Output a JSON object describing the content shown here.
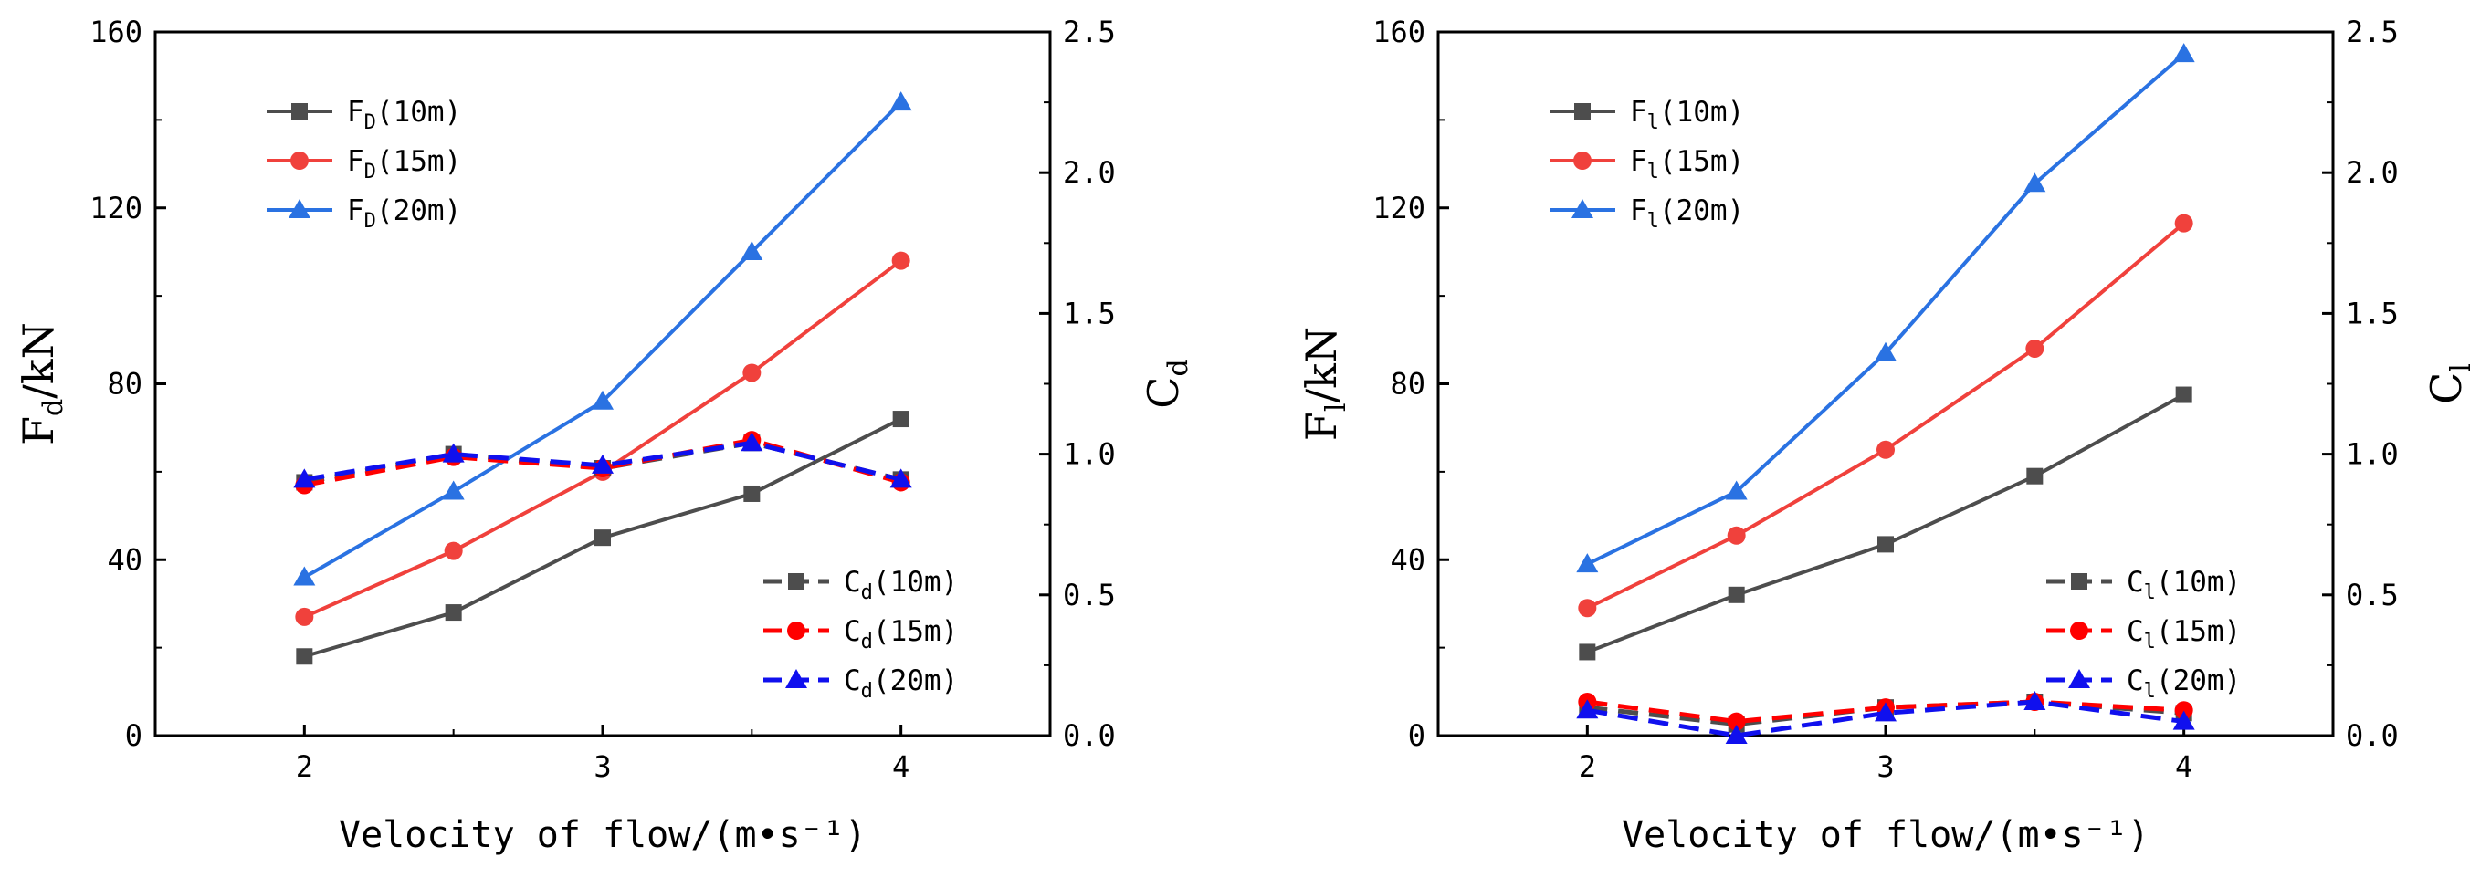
{
  "colors": {
    "gray": "#4d4d4d",
    "red_solid": "#f0413c",
    "blue_solid": "#2a72e2",
    "red_dashed": "#ff0000",
    "blue_dashed": "#1010ee"
  },
  "chart_data": [
    {
      "type": "line",
      "x": [
        2,
        2.5,
        3,
        3.5,
        4
      ],
      "xlabel": "Velocity of flow/(m•s⁻¹)",
      "ylabel_left": {
        "base": "F",
        "sub": "d",
        "rest": "/kN"
      },
      "ylabel_right": {
        "base": "C",
        "sub": "d",
        "rest": ""
      },
      "xlim": [
        1.5,
        4.5
      ],
      "ylim_left": [
        0,
        160
      ],
      "ylim_right": [
        0,
        2.5
      ],
      "xticks": [
        "2",
        "3",
        "4"
      ],
      "xtick_values": [
        2,
        3,
        4
      ],
      "yticks_left": [
        "0",
        "40",
        "80",
        "120",
        "160"
      ],
      "yticks_right": [
        "0.0",
        "0.5",
        "1.0",
        "1.5",
        "2.0",
        "2.5"
      ],
      "grid": false,
      "series_left": [
        {
          "base": "F",
          "sub": "D",
          "rest": "(10m)",
          "marker": "square",
          "color": "gray",
          "values": [
            18,
            28,
            45,
            55,
            72
          ]
        },
        {
          "base": "F",
          "sub": "D",
          "rest": "(15m)",
          "marker": "circle",
          "color": "red_solid",
          "values": [
            27,
            42,
            60,
            82.5,
            108
          ]
        },
        {
          "base": "F",
          "sub": "D",
          "rest": "(20m)",
          "marker": "triangle",
          "color": "blue_solid",
          "values": [
            36,
            55.5,
            76,
            110,
            144
          ]
        }
      ],
      "series_right": [
        {
          "base": "C",
          "sub": "d",
          "rest": "(10m)",
          "marker": "square",
          "color": "gray",
          "values": [
            0.9,
            1.0,
            0.95,
            1.04,
            0.91
          ]
        },
        {
          "base": "C",
          "sub": "d",
          "rest": "(15m)",
          "marker": "circle",
          "color": "red_dashed",
          "values": [
            0.89,
            0.99,
            0.95,
            1.05,
            0.9
          ]
        },
        {
          "base": "C",
          "sub": "d",
          "rest": "(20m)",
          "marker": "triangle",
          "color": "blue_dashed",
          "values": [
            0.91,
            1.0,
            0.96,
            1.04,
            0.91
          ]
        }
      ],
      "legend_left_placement": "upper-left",
      "legend_right_placement": "lower-right"
    },
    {
      "type": "line",
      "x": [
        2,
        2.5,
        3,
        3.5,
        4
      ],
      "xlabel": "Velocity of flow/(m•s⁻¹)",
      "ylabel_left": {
        "base": "F",
        "sub": "l",
        "rest": "/kN"
      },
      "ylabel_right": {
        "base": "C",
        "sub": "l",
        "rest": ""
      },
      "xlim": [
        1.5,
        4.5
      ],
      "ylim_left": [
        0,
        160
      ],
      "ylim_right": [
        0,
        2.5
      ],
      "xticks": [
        "2",
        "3",
        "4"
      ],
      "xtick_values": [
        2,
        3,
        4
      ],
      "yticks_left": [
        "0",
        "40",
        "80",
        "120",
        "160"
      ],
      "yticks_right": [
        "0.0",
        "0.5",
        "1.0",
        "1.5",
        "2.0",
        "2.5"
      ],
      "grid": false,
      "series_left": [
        {
          "base": "F",
          "sub": "l",
          "rest": "(10m)",
          "marker": "square",
          "color": "gray",
          "values": [
            19,
            32,
            43.5,
            59,
            77.5
          ]
        },
        {
          "base": "F",
          "sub": "l",
          "rest": "(15m)",
          "marker": "circle",
          "color": "red_solid",
          "values": [
            29,
            45.5,
            65,
            88,
            116.5
          ]
        },
        {
          "base": "F",
          "sub": "l",
          "rest": "(20m)",
          "marker": "triangle",
          "color": "blue_solid",
          "values": [
            39,
            55.5,
            87,
            125.5,
            155
          ]
        }
      ],
      "series_right": [
        {
          "base": "C",
          "sub": "l",
          "rest": "(10m)",
          "marker": "square",
          "color": "gray",
          "values": [
            0.1,
            0.04,
            0.1,
            0.12,
            0.08
          ]
        },
        {
          "base": "C",
          "sub": "l",
          "rest": "(15m)",
          "marker": "circle",
          "color": "red_dashed",
          "values": [
            0.12,
            0.05,
            0.1,
            0.12,
            0.09
          ]
        },
        {
          "base": "C",
          "sub": "l",
          "rest": "(20m)",
          "marker": "triangle",
          "color": "blue_dashed",
          "values": [
            0.09,
            0.0,
            0.08,
            0.12,
            0.05
          ]
        }
      ],
      "legend_left_placement": "upper-left",
      "legend_right_placement": "lower-right"
    }
  ]
}
